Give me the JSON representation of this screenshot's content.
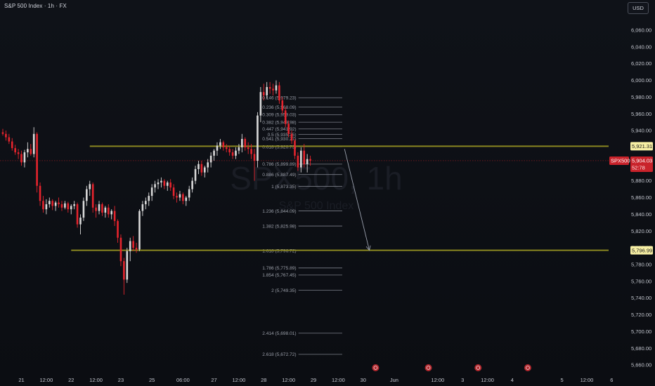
{
  "header": {
    "title": "S&P 500 Index · 1h · FX"
  },
  "currency_button": {
    "label": "USD"
  },
  "watermark": {
    "symbol": "SPX500, 1h",
    "name": "S&P 500 Index"
  },
  "colors": {
    "background": "#0d1017",
    "bull": "#d9d9d9",
    "bear": "#e5242d",
    "level_line": "#8a8620",
    "current_price_line": "#e5242d",
    "price_tag_bear": "#c9232b",
    "level_tag": "#f7efa4"
  },
  "chart_data": {
    "type": "candlestick",
    "title": "S&P 500 Index · 1h · FX",
    "y_axis": {
      "min": 5650,
      "max": 6075,
      "ticks": [
        "6,060.00",
        "6,040.00",
        "6,020.00",
        "6,000.00",
        "5,980.00",
        "5,960.00",
        "5,940.00",
        "5,920.00",
        "5,900.00",
        "5,880.00",
        "5,860.00",
        "5,840.00",
        "5,820.00",
        "5,800.00",
        "5,780.00",
        "5,760.00",
        "5,740.00",
        "5,720.00",
        "5,700.00",
        "5,680.00",
        "5,660.00"
      ]
    },
    "x_axis": {
      "ticks": [
        {
          "label": "21",
          "bar": 6
        },
        {
          "label": "12:00",
          "bar": 14
        },
        {
          "label": "22",
          "bar": 22
        },
        {
          "label": "12:00",
          "bar": 30
        },
        {
          "label": "23",
          "bar": 38
        },
        {
          "label": "25",
          "bar": 48
        },
        {
          "label": "06:00",
          "bar": 58
        },
        {
          "label": "27",
          "bar": 68
        },
        {
          "label": "12:00",
          "bar": 76
        },
        {
          "label": "28",
          "bar": 84
        },
        {
          "label": "12:00",
          "bar": 92
        },
        {
          "label": "29",
          "bar": 100
        },
        {
          "label": "12:00",
          "bar": 108
        },
        {
          "label": "30",
          "bar": 116
        },
        {
          "label": "Jun",
          "bar": 126
        },
        {
          "label": "12:00",
          "bar": 140
        },
        {
          "label": "3",
          "bar": 148
        },
        {
          "label": "12:00",
          "bar": 156
        },
        {
          "label": "4",
          "bar": 164
        },
        {
          "label": "5",
          "bar": 180
        },
        {
          "label": "12:00",
          "bar": 188
        },
        {
          "label": "6",
          "bar": 196
        }
      ],
      "event_markers": [
        {
          "bar": 120
        },
        {
          "bar": 137
        },
        {
          "bar": 153
        },
        {
          "bar": 169
        }
      ]
    },
    "levels": [
      {
        "name": "upper-level",
        "price": 5921.31,
        "label": "5,921.31",
        "from_bar": 28
      },
      {
        "name": "lower-level",
        "price": 5796.99,
        "label": "5,796.99",
        "from_bar": 22
      }
    ],
    "current_price": {
      "price": 5904.03,
      "label": "5,904.03",
      "symbol": "SPX500",
      "countdown": "52:78"
    },
    "fib_extension": {
      "start_bar": 92,
      "end_bar": 107,
      "levels": [
        {
          "ratio": "0.146",
          "price": 5979.23,
          "label": "0.146 (5,979.23)"
        },
        {
          "ratio": "0.236",
          "price": 5968.09,
          "label": "0.236 (5,968.09)"
        },
        {
          "ratio": "0.309",
          "price": 5959.03,
          "label": "0.309 (5,959.03)"
        },
        {
          "ratio": "0.382",
          "price": 5949.98,
          "label": "0.382 (5,949.98)"
        },
        {
          "ratio": "0.447",
          "price": 5941.92,
          "label": "0.447 (5,941.92)"
        },
        {
          "ratio": "0.5",
          "price": 5935.35,
          "label": "0.5 (5,935.35)"
        },
        {
          "ratio": "0.541",
          "price": 5930.27,
          "label": "0.541 (5,930.27)"
        },
        {
          "ratio": "0.618",
          "price": 5920.73,
          "label": "0.618 (5,920.73)"
        },
        {
          "ratio": "0.786",
          "price": 5899.89,
          "label": "0.786 (5,899.89)"
        },
        {
          "ratio": "0.886",
          "price": 5887.49,
          "label": "0.886 (5,887.49)"
        },
        {
          "ratio": "1",
          "price": 5873.35,
          "label": "1 (5,873.35)"
        },
        {
          "ratio": "1.236",
          "price": 5844.09,
          "label": "1.236 (5,844.09)"
        },
        {
          "ratio": "1.382",
          "price": 5825.98,
          "label": "1.382 (5,825.98)"
        },
        {
          "ratio": "1.618",
          "price": 5796.72,
          "label": "1.618 (5,796.72)"
        },
        {
          "ratio": "1.786",
          "price": 5775.89,
          "label": "1.786 (5,775.89)"
        },
        {
          "ratio": "1.854",
          "price": 5767.45,
          "label": "1.854 (5,767.45)"
        },
        {
          "ratio": "2",
          "price": 5749.35,
          "label": "2 (5,749.35)"
        },
        {
          "ratio": "2.414",
          "price": 5698.01,
          "label": "2.414 (5,698.01)"
        },
        {
          "ratio": "2.618",
          "price": 5672.72,
          "label": "2.618 (5,672.72)"
        }
      ]
    },
    "projection_arrow": {
      "from_bar": 110,
      "from_price": 5918,
      "to_bar": 118,
      "to_price": 5797
    },
    "bar_count": 111,
    "ohlc": [
      [
        5938,
        5942,
        5934,
        5936
      ],
      [
        5936,
        5940,
        5928,
        5932
      ],
      [
        5932,
        5936,
        5924,
        5927
      ],
      [
        5927,
        5931,
        5916,
        5919
      ],
      [
        5919,
        5923,
        5911,
        5914
      ],
      [
        5914,
        5918,
        5906,
        5912
      ],
      [
        5912,
        5916,
        5898,
        5902
      ],
      [
        5902,
        5917,
        5896,
        5914
      ],
      [
        5914,
        5926,
        5908,
        5918
      ],
      [
        5918,
        5924,
        5910,
        5912
      ],
      [
        5912,
        5944,
        5908,
        5936
      ],
      [
        5936,
        5938,
        5866,
        5874
      ],
      [
        5874,
        5878,
        5850,
        5856
      ],
      [
        5856,
        5862,
        5842,
        5846
      ],
      [
        5846,
        5858,
        5840,
        5852
      ],
      [
        5852,
        5860,
        5848,
        5856
      ],
      [
        5856,
        5858,
        5845,
        5850
      ],
      [
        5850,
        5856,
        5844,
        5854
      ],
      [
        5854,
        5860,
        5848,
        5852
      ],
      [
        5852,
        5856,
        5844,
        5848
      ],
      [
        5848,
        5856,
        5846,
        5853
      ],
      [
        5853,
        5855,
        5842,
        5846
      ],
      [
        5846,
        5852,
        5840,
        5850
      ],
      [
        5850,
        5856,
        5846,
        5852
      ],
      [
        5852,
        5854,
        5824,
        5828
      ],
      [
        5828,
        5840,
        5816,
        5836
      ],
      [
        5836,
        5860,
        5832,
        5856
      ],
      [
        5856,
        5874,
        5850,
        5870
      ],
      [
        5870,
        5880,
        5862,
        5876
      ],
      [
        5876,
        5878,
        5842,
        5848
      ],
      [
        5848,
        5852,
        5836,
        5844
      ],
      [
        5844,
        5856,
        5840,
        5852
      ],
      [
        5852,
        5854,
        5838,
        5842
      ],
      [
        5842,
        5850,
        5836,
        5848
      ],
      [
        5848,
        5852,
        5836,
        5840
      ],
      [
        5840,
        5846,
        5834,
        5844
      ],
      [
        5844,
        5850,
        5826,
        5832
      ],
      [
        5832,
        5834,
        5806,
        5812
      ],
      [
        5812,
        5816,
        5778,
        5784
      ],
      [
        5784,
        5788,
        5744,
        5762
      ],
      [
        5762,
        5800,
        5758,
        5796
      ],
      [
        5796,
        5812,
        5784,
        5808
      ],
      [
        5808,
        5814,
        5796,
        5800
      ],
      [
        5800,
        5806,
        5794,
        5798
      ],
      [
        5798,
        5846,
        5796,
        5844
      ],
      [
        5844,
        5856,
        5838,
        5852
      ],
      [
        5852,
        5860,
        5846,
        5856
      ],
      [
        5856,
        5866,
        5850,
        5862
      ],
      [
        5862,
        5876,
        5856,
        5872
      ],
      [
        5872,
        5880,
        5866,
        5876
      ],
      [
        5876,
        5882,
        5870,
        5878
      ],
      [
        5878,
        5884,
        5872,
        5880
      ],
      [
        5880,
        5882,
        5870,
        5874
      ],
      [
        5874,
        5880,
        5868,
        5878
      ],
      [
        5878,
        5882,
        5868,
        5872
      ],
      [
        5872,
        5876,
        5858,
        5862
      ],
      [
        5862,
        5866,
        5854,
        5860
      ],
      [
        5860,
        5868,
        5856,
        5864
      ],
      [
        5864,
        5866,
        5852,
        5856
      ],
      [
        5856,
        5862,
        5850,
        5860
      ],
      [
        5860,
        5874,
        5856,
        5870
      ],
      [
        5870,
        5884,
        5866,
        5880
      ],
      [
        5880,
        5898,
        5876,
        5894
      ],
      [
        5894,
        5904,
        5888,
        5900
      ],
      [
        5900,
        5904,
        5886,
        5890
      ],
      [
        5890,
        5898,
        5884,
        5896
      ],
      [
        5896,
        5906,
        5890,
        5902
      ],
      [
        5902,
        5914,
        5896,
        5910
      ],
      [
        5910,
        5918,
        5904,
        5916
      ],
      [
        5916,
        5926,
        5910,
        5922
      ],
      [
        5922,
        5930,
        5918,
        5926
      ],
      [
        5926,
        5928,
        5916,
        5920
      ],
      [
        5920,
        5924,
        5914,
        5918
      ],
      [
        5918,
        5922,
        5910,
        5914
      ],
      [
        5914,
        5918,
        5906,
        5910
      ],
      [
        5910,
        5920,
        5906,
        5916
      ],
      [
        5916,
        5924,
        5912,
        5920
      ],
      [
        5920,
        5936,
        5914,
        5930
      ],
      [
        5930,
        5932,
        5916,
        5920
      ],
      [
        5920,
        5926,
        5912,
        5918
      ],
      [
        5918,
        5924,
        5906,
        5912
      ],
      [
        5912,
        5918,
        5880,
        5904
      ],
      [
        5904,
        5962,
        5896,
        5958
      ],
      [
        5958,
        5992,
        5950,
        5986
      ],
      [
        5986,
        5996,
        5976,
        5982
      ],
      [
        5982,
        5998,
        5978,
        5992
      ],
      [
        5992,
        5998,
        5984,
        5990
      ],
      [
        5990,
        5996,
        5982,
        5988
      ],
      [
        5988,
        6000,
        5984,
        5994
      ],
      [
        5994,
        5998,
        5972,
        5976
      ],
      [
        5976,
        5980,
        5960,
        5964
      ],
      [
        5964,
        5968,
        5944,
        5948
      ],
      [
        5948,
        5952,
        5932,
        5936
      ],
      [
        5936,
        5940,
        5924,
        5928
      ],
      [
        5928,
        5930,
        5906,
        5910
      ],
      [
        5910,
        5914,
        5892,
        5896
      ],
      [
        5896,
        5920,
        5890,
        5916
      ],
      [
        5916,
        5924,
        5896,
        5900
      ],
      [
        5900,
        5912,
        5890,
        5906
      ],
      [
        5906,
        5910,
        5898,
        5904
      ]
    ]
  }
}
